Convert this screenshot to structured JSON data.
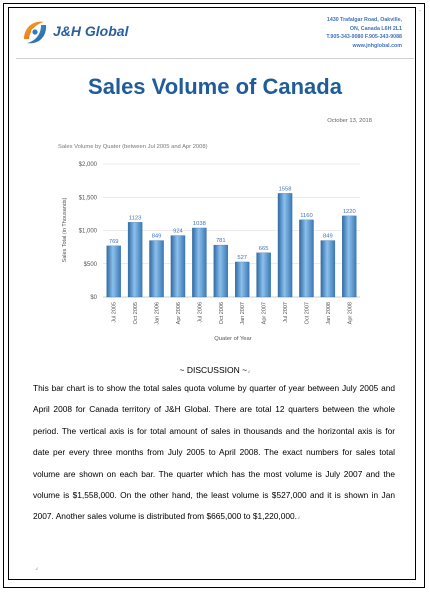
{
  "header": {
    "company": "J&H Global",
    "address_lines": [
      "1430 Trafalgar Road, Oakville,",
      "ON, Canada L6H 2L1",
      "T.905-343-9080   F.905-343-9088",
      "www.jnhglobal.com"
    ]
  },
  "title": "Sales Volume of Canada",
  "date": "October 13, 2018",
  "chart_data": {
    "type": "bar",
    "title": "Sales Volume by Quater (between Jul 2005 and Apr 2008)",
    "xlabel": "Quater of Year",
    "ylabel": "Sales Total (in Thousands)",
    "ylim": [
      0,
      2000
    ],
    "yticks": [
      "$0",
      "$500",
      "$1,000",
      "$1,500",
      "$2,000"
    ],
    "categories": [
      "Jul 2005",
      "Oct 2005",
      "Jan 2006",
      "Apr 2006",
      "Jul 2006",
      "Oct 2006",
      "Jan 2007",
      "Apr 2007",
      "Jul 2007",
      "Oct 2007",
      "Jan 2008",
      "Apr 2008"
    ],
    "values": [
      769,
      1123,
      849,
      924,
      1038,
      781,
      527,
      665,
      1558,
      1160,
      849,
      1220
    ],
    "value_labels": [
      "769",
      "1123",
      "849",
      "924",
      "1038",
      "781",
      "527",
      "665",
      "1558",
      "1160",
      "849",
      "1220"
    ],
    "grid": true,
    "colors": {
      "bar": "#5b9bd5",
      "bar_dark": "#2f6aa3",
      "label": "#3f73b8",
      "grid": "#d9d9d9"
    }
  },
  "discussion": {
    "heading": "~ DISCUSSION ~",
    "body": "This bar chart is to show the total sales quota volume by quarter of year between July 2005 and April 2008 for Canada territory of J&H Global. There are total 12 quarters between the whole period. The vertical axis is for total amount of sales in thousands and the horizontal axis is for date per every three months from July 2005 to April 2008. The exact numbers for sales total volume are shown on each bar. The quarter which has the most volume is July 2007 and the volume is $1,558,000. On the other hand, the least volume is $527,000 and it is shown in Jan 2007. Another sales volume is distributed from $665,000 to $1,220,000."
  }
}
